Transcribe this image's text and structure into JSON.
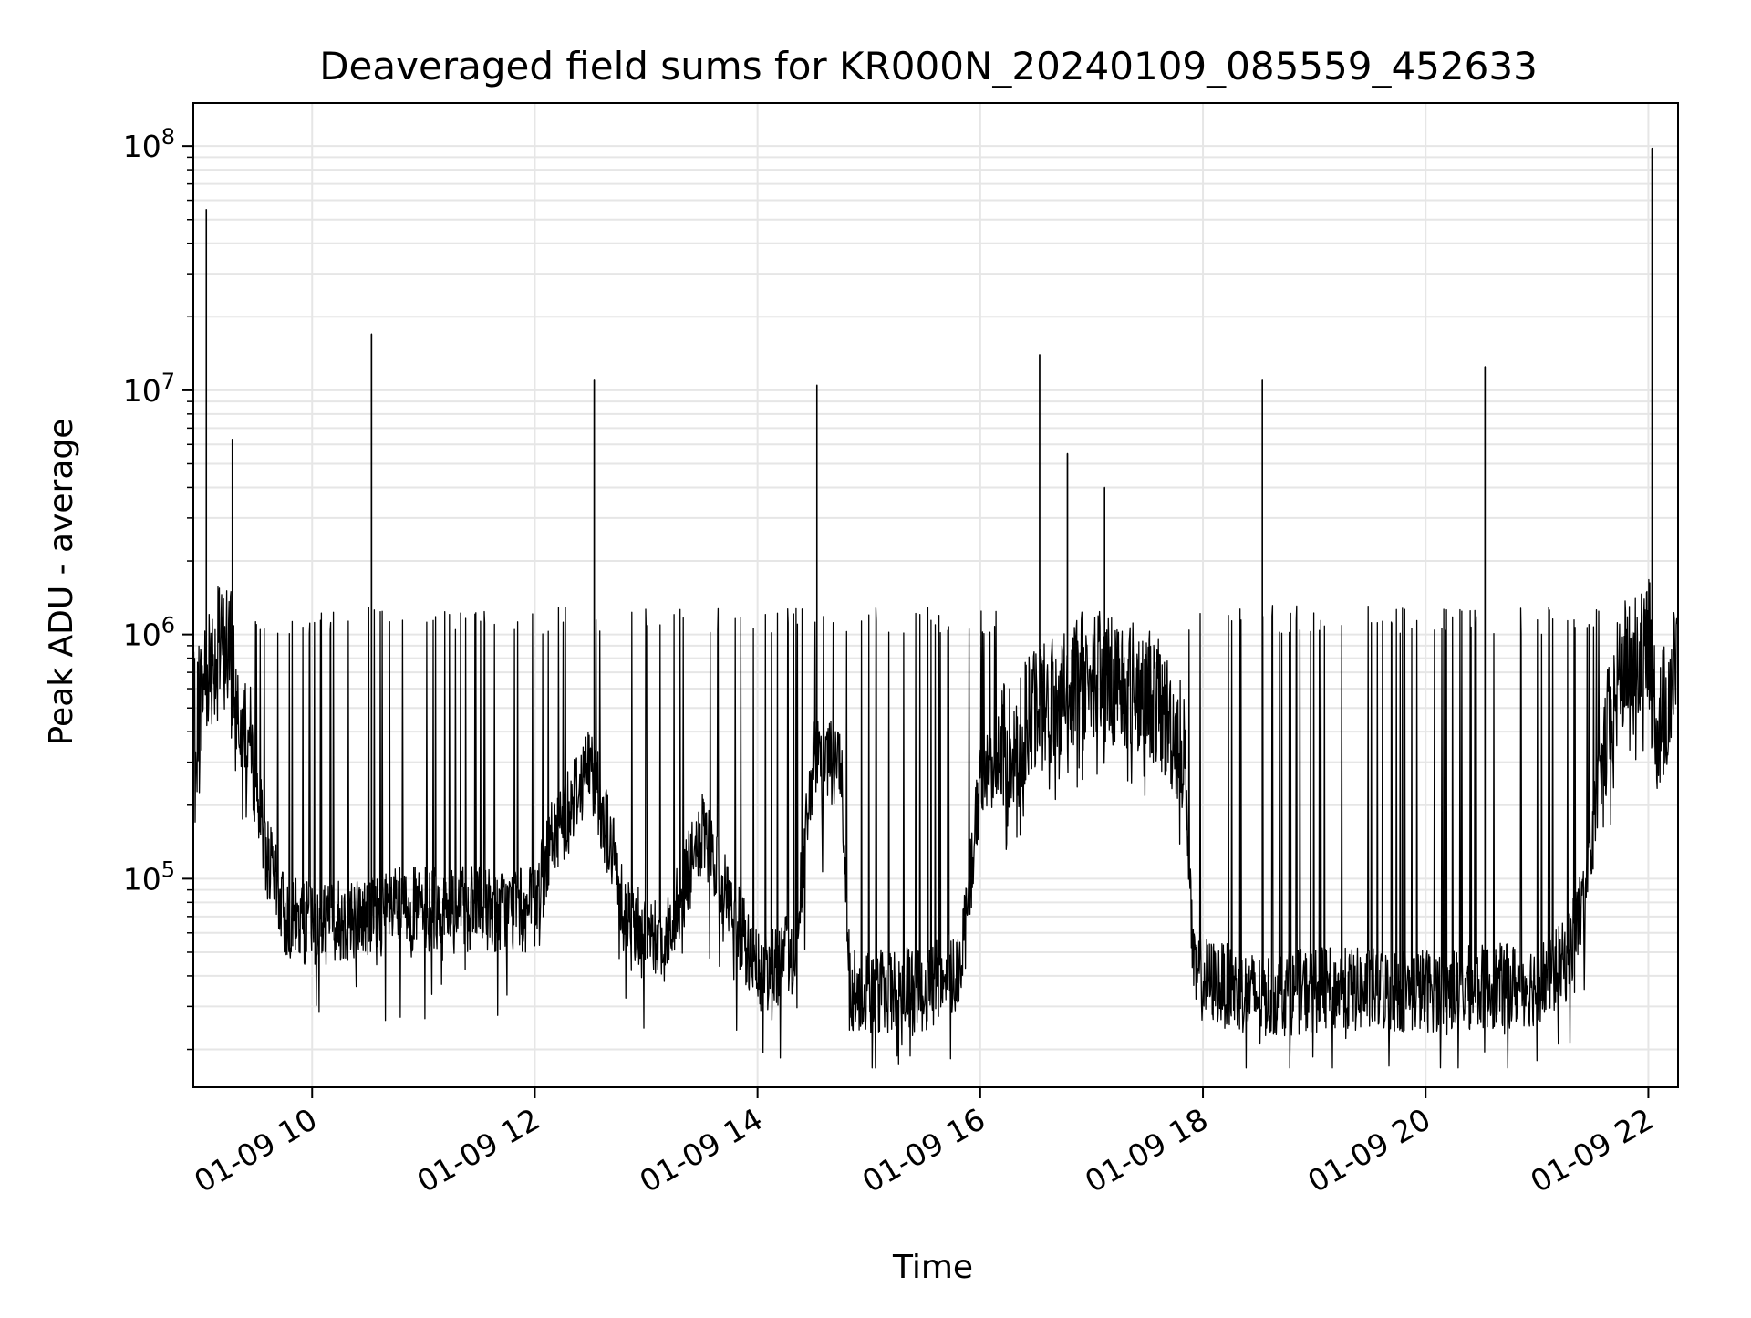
{
  "chart_data": {
    "type": "line",
    "title": "Deaveraged field sums for KR000N_20240109_085559_452633",
    "xlabel": "Time",
    "ylabel": "Peak ADU - average",
    "y_scale": "log",
    "ylim": [
      14000,
      150000000
    ],
    "xlim": [
      "2024-01-09 08:56",
      "2024-01-09 22:16"
    ],
    "grid": true,
    "line_color": "#000000",
    "x_ticks": [
      {
        "value": "2024-01-09 10:00",
        "label": "01-09 10"
      },
      {
        "value": "2024-01-09 12:00",
        "label": "01-09 12"
      },
      {
        "value": "2024-01-09 14:00",
        "label": "01-09 14"
      },
      {
        "value": "2024-01-09 16:00",
        "label": "01-09 16"
      },
      {
        "value": "2024-01-09 18:00",
        "label": "01-09 18"
      },
      {
        "value": "2024-01-09 20:00",
        "label": "01-09 20"
      },
      {
        "value": "2024-01-09 22:00",
        "label": "01-09 22"
      }
    ],
    "y_ticks": [
      {
        "value": 100000,
        "base": "10",
        "exp": "5"
      },
      {
        "value": 1000000,
        "base": "10",
        "exp": "6"
      },
      {
        "value": 10000000,
        "base": "10",
        "exp": "7"
      },
      {
        "value": 100000000,
        "base": "10",
        "exp": "8"
      }
    ],
    "series": [
      {
        "baseline": [
          [
            "2024-01-09 08:56",
            450000
          ],
          [
            "2024-01-09 09:05",
            800000
          ],
          [
            "2024-01-09 09:15",
            900000
          ],
          [
            "2024-01-09 09:25",
            400000
          ],
          [
            "2024-01-09 09:35",
            130000
          ],
          [
            "2024-01-09 09:45",
            70000
          ],
          [
            "2024-01-09 10:00",
            65000
          ],
          [
            "2024-01-09 10:30",
            70000
          ],
          [
            "2024-01-09 10:50",
            75000
          ],
          [
            "2024-01-09 11:00",
            75000
          ],
          [
            "2024-01-09 11:30",
            75000
          ],
          [
            "2024-01-09 12:00",
            75000
          ],
          [
            "2024-01-09 12:10",
            150000
          ],
          [
            "2024-01-09 12:30",
            300000
          ],
          [
            "2024-01-09 12:50",
            70000
          ],
          [
            "2024-01-09 13:10",
            55000
          ],
          [
            "2024-01-09 13:30",
            150000
          ],
          [
            "2024-01-09 13:45",
            80000
          ],
          [
            "2024-01-09 14:00",
            40000
          ],
          [
            "2024-01-09 14:20",
            50000
          ],
          [
            "2024-01-09 14:30",
            300000
          ],
          [
            "2024-01-09 14:45",
            300000
          ],
          [
            "2024-01-09 14:50",
            35000
          ],
          [
            "2024-01-09 15:30",
            35000
          ],
          [
            "2024-01-09 15:50",
            45000
          ],
          [
            "2024-01-09 16:00",
            250000
          ],
          [
            "2024-01-09 16:30",
            500000
          ],
          [
            "2024-01-09 17:00",
            700000
          ],
          [
            "2024-01-09 17:30",
            600000
          ],
          [
            "2024-01-09 17:50",
            350000
          ],
          [
            "2024-01-09 17:55",
            40000
          ],
          [
            "2024-01-09 18:30",
            33000
          ],
          [
            "2024-01-09 19:00",
            35000
          ],
          [
            "2024-01-09 20:00",
            35000
          ],
          [
            "2024-01-09 21:00",
            37000
          ],
          [
            "2024-01-09 21:15",
            45000
          ],
          [
            "2024-01-09 21:25",
            80000
          ],
          [
            "2024-01-09 21:35",
            300000
          ],
          [
            "2024-01-09 21:45",
            700000
          ],
          [
            "2024-01-09 22:00",
            1000000
          ],
          [
            "2024-01-09 22:05",
            400000
          ],
          [
            "2024-01-09 22:16",
            800000
          ]
        ],
        "spikes": [
          [
            "2024-01-09 09:03",
            55000000
          ],
          [
            "2024-01-09 09:17",
            6300000
          ],
          [
            "2024-01-09 10:32",
            17000000
          ],
          [
            "2024-01-09 12:32",
            11000000
          ],
          [
            "2024-01-09 14:32",
            10500000
          ],
          [
            "2024-01-09 16:32",
            14000000
          ],
          [
            "2024-01-09 16:47",
            5500000
          ],
          [
            "2024-01-09 17:07",
            4000000
          ],
          [
            "2024-01-09 18:32",
            11000000
          ],
          [
            "2024-01-09 20:32",
            12500000
          ],
          [
            "2024-01-09 22:02",
            98000000
          ]
        ]
      }
    ]
  }
}
